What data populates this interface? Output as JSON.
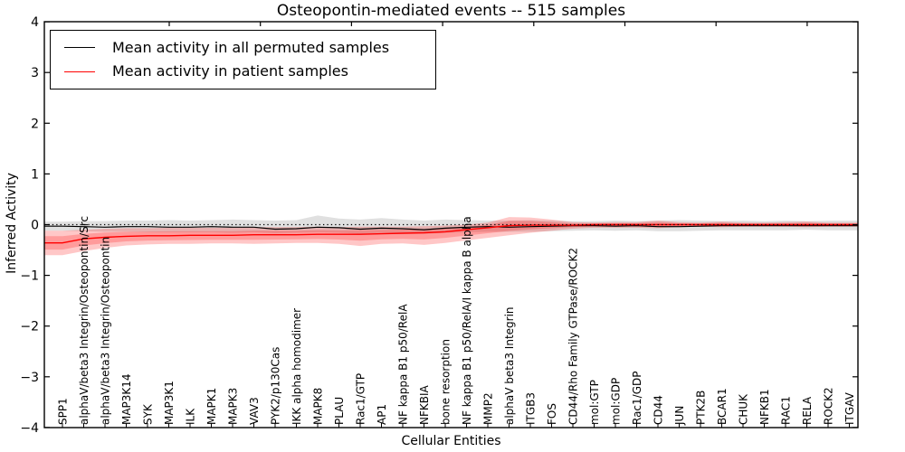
{
  "figure": {
    "title": "Osteopontin-mediated events -- 515 samples",
    "xlabel": "Cellular Entities",
    "ylabel": "Inferred Activity"
  },
  "chart_data": {
    "type": "line",
    "title": "Osteopontin-mediated events -- 515 samples",
    "xlabel": "Cellular Entities",
    "ylabel": "Inferred Activity",
    "ylim": [
      -4,
      4
    ],
    "yticks": [
      4,
      3,
      2,
      1,
      0,
      -1,
      -2,
      -3,
      -4
    ],
    "grid": false,
    "legend_position": "upper left",
    "zero_reference_line": "dotted",
    "categories": [
      "SPP1",
      "alphaV/beta3 Integrin/Osteopontin/Src",
      "alphaV/beta3 Integrin/Osteopontin",
      "MAP3K14",
      "SYK",
      "MAP3K1",
      "ILK",
      "MAPK1",
      "MAPK3",
      "VAV3",
      "PYK2/p130Cas",
      "IKK alpha homodimer",
      "MAPK8",
      "PLAU",
      "Rac1/GTP",
      "AP1",
      "NF kappa B1 p50/RelA",
      "NFKBIA",
      "bone resorption",
      "NF kappa B1 p50/RelA/I kappa B alpha",
      "MMP2",
      "alphaV beta3 Integrin",
      "ITGB3",
      "FOS",
      "CD44/Rho Family GTPase/ROCK2",
      "mol:GTP",
      "mol:GDP",
      "Rac1/GDP",
      "CD44",
      "JUN",
      "PTK2B",
      "BCAR1",
      "CHUK",
      "NFKB1",
      "RAC1",
      "RELA",
      "ROCK2",
      "ITGAV"
    ],
    "series": [
      {
        "name": "Mean activity in all permuted samples",
        "color": "#000000",
        "band_color": "#999999",
        "values": [
          -0.03,
          -0.04,
          -0.05,
          -0.04,
          -0.04,
          -0.05,
          -0.05,
          -0.04,
          -0.05,
          -0.05,
          -0.09,
          -0.08,
          -0.05,
          -0.06,
          -0.09,
          -0.07,
          -0.08,
          -0.1,
          -0.07,
          -0.05,
          -0.04,
          -0.05,
          -0.04,
          -0.03,
          -0.02,
          -0.02,
          -0.03,
          -0.02,
          -0.04,
          -0.04,
          -0.03,
          -0.02,
          -0.02,
          -0.02,
          -0.02,
          -0.02,
          -0.02,
          -0.02
        ],
        "band_upper": [
          0.06,
          0.07,
          0.07,
          0.08,
          0.08,
          0.09,
          0.08,
          0.09,
          0.1,
          0.09,
          0.08,
          0.09,
          0.18,
          0.12,
          0.1,
          0.13,
          0.1,
          0.08,
          0.1,
          0.09,
          0.08,
          0.08,
          0.09,
          0.08,
          0.07,
          0.07,
          0.08,
          0.07,
          0.08,
          0.09,
          0.08,
          0.07,
          0.08,
          0.07,
          0.08,
          0.07,
          0.08,
          0.08
        ],
        "band_lower": [
          -0.12,
          -0.13,
          -0.14,
          -0.14,
          -0.15,
          -0.15,
          -0.15,
          -0.15,
          -0.16,
          -0.15,
          -0.17,
          -0.16,
          -0.15,
          -0.16,
          -0.18,
          -0.16,
          -0.17,
          -0.18,
          -0.16,
          -0.15,
          -0.14,
          -0.14,
          -0.14,
          -0.13,
          -0.12,
          -0.11,
          -0.12,
          -0.11,
          -0.13,
          -0.13,
          -0.12,
          -0.11,
          -0.11,
          -0.11,
          -0.11,
          -0.1,
          -0.11,
          -0.11
        ]
      },
      {
        "name": "Mean activity in patient samples",
        "color": "#ff0000",
        "band_color": "#ff0000",
        "values": [
          -0.36,
          -0.28,
          -0.25,
          -0.23,
          -0.22,
          -0.22,
          -0.21,
          -0.21,
          -0.21,
          -0.2,
          -0.2,
          -0.2,
          -0.19,
          -0.19,
          -0.19,
          -0.18,
          -0.17,
          -0.16,
          -0.14,
          -0.1,
          -0.06,
          -0.02,
          -0.01,
          -0.01,
          -0.01,
          0.0,
          0.0,
          0.0,
          0.0,
          0.0,
          0.0,
          0.0,
          0.0,
          0.0,
          0.0,
          0.0,
          0.0,
          0.0
        ],
        "band_upper": [
          -0.12,
          -0.1,
          -0.08,
          -0.07,
          -0.07,
          -0.06,
          -0.06,
          -0.06,
          -0.06,
          -0.05,
          -0.05,
          -0.05,
          -0.04,
          -0.05,
          -0.04,
          -0.04,
          -0.04,
          -0.03,
          -0.02,
          0.0,
          0.04,
          0.15,
          0.14,
          0.1,
          0.05,
          0.04,
          0.05,
          0.05,
          0.08,
          0.05,
          0.04,
          0.06,
          0.04,
          0.04,
          0.05,
          0.06,
          0.04,
          0.04
        ],
        "band_lower": [
          -0.6,
          -0.52,
          -0.46,
          -0.41,
          -0.39,
          -0.38,
          -0.38,
          -0.37,
          -0.37,
          -0.38,
          -0.37,
          -0.36,
          -0.36,
          -0.38,
          -0.42,
          -0.38,
          -0.37,
          -0.4,
          -0.36,
          -0.31,
          -0.26,
          -0.21,
          -0.16,
          -0.12,
          -0.08,
          -0.06,
          -0.06,
          -0.06,
          -0.07,
          -0.05,
          -0.04,
          -0.05,
          -0.04,
          -0.04,
          -0.04,
          -0.05,
          -0.04,
          -0.04
        ]
      }
    ]
  }
}
